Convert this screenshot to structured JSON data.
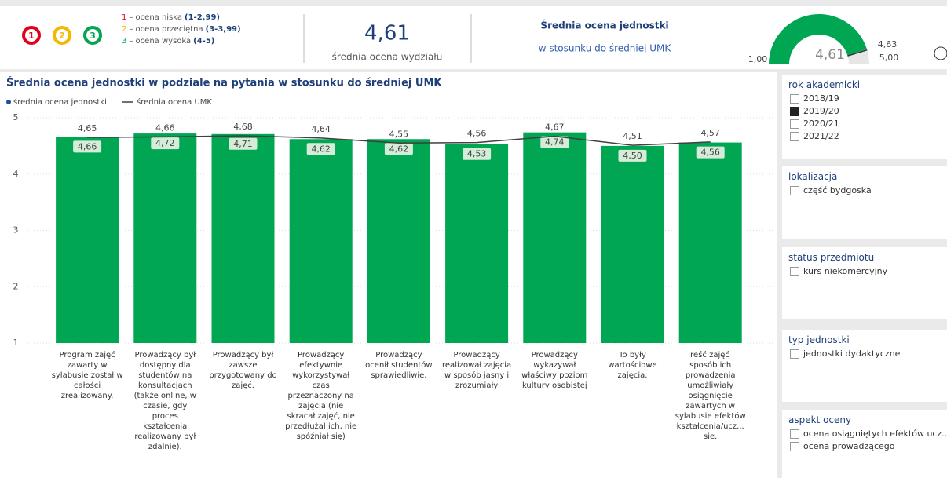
{
  "header": {
    "legend": [
      {
        "num": "1",
        "text": "– ocena niska",
        "range": "(1-2,99)"
      },
      {
        "num": "2",
        "text": "– ocena przeciętna",
        "range": "(3-3,99)"
      },
      {
        "num": "3",
        "text": "– ocena wysoka",
        "range": "(4-5)"
      }
    ],
    "kpi": {
      "value": "4,61",
      "label": "średnia ocena wydziału"
    },
    "compare": {
      "title": "Średnia ocena jednostki",
      "subtitle": "w stosunku do średniej UMK"
    },
    "gauge": {
      "value": 4.61,
      "label": "4,61",
      "min": {
        "value": 1,
        "label": "1,00"
      },
      "max": {
        "value": 5,
        "label": "5,00"
      },
      "target": {
        "value": 4.63,
        "label": "4,63"
      }
    }
  },
  "chart_data": {
    "type": "bar",
    "title": "Średnia ocena jednostki w podziale na pytania w stosunku do średniej UMK",
    "categories": [
      "Program zajęć zawarty w sylabusie został w całości zrealizowany.",
      "Prowadzący był dostępny dla studentów na konsultacjach (także online, w czasie, gdy proces kształcenia realizowany był zdalnie).",
      "Prowadzący był zawsze przygotowany do zajęć.",
      "Prowadzący efektywnie wykorzystywał czas przeznaczony na zajęcia (nie skracał zajęć, nie przedłużał ich, nie spóźniał się)",
      "Prowadzący ocenił studentów sprawiedliwie.",
      "Prowadzący realizował zajęcia w sposób jasny i zrozumiały",
      "Prowadzący wykazywał właściwy poziom kultury osobistej",
      "To były wartościowe zajęcia.",
      "Treść zajęć i sposób ich prowadzenia umożliwiały osiągnięcie zawartych w sylabusie efektów kształcenia/ucz... sie."
    ],
    "series": [
      {
        "name": "średnia ocena jednostki",
        "color": "#00a651",
        "values": [
          4.66,
          4.72,
          4.71,
          4.62,
          4.62,
          4.53,
          4.74,
          4.5,
          4.56
        ],
        "value_labels": [
          "4,66",
          "4,72",
          "4,71",
          "4,62",
          "4,62",
          "4,53",
          "4,74",
          "4,50",
          "4,56"
        ]
      },
      {
        "name": "średnia ocena UMK",
        "type": "line",
        "color": "#404040",
        "values": [
          4.65,
          4.66,
          4.68,
          4.64,
          4.55,
          4.56,
          4.67,
          4.51,
          4.57
        ],
        "value_labels": [
          "4,65",
          "4,66",
          "4,68",
          "4,64",
          "4,55",
          "4,56",
          "4,67",
          "4,51",
          "4,57"
        ]
      }
    ],
    "ylim": [
      1,
      5
    ],
    "yticks": [
      1,
      2,
      3,
      4,
      5
    ],
    "grid": true
  },
  "filters": [
    {
      "title": "rok akademicki",
      "options": [
        "2018/19",
        "2019/20",
        "2020/21",
        "2021/22"
      ],
      "selected": [
        false,
        true,
        false,
        false
      ]
    },
    {
      "title": "lokalizacja",
      "options": [
        "część bydgoska"
      ],
      "selected": [
        false
      ]
    },
    {
      "title": "status przedmiotu",
      "options": [
        "kurs niekomercyjny"
      ],
      "selected": [
        false
      ]
    },
    {
      "title": "typ jednostki",
      "options": [
        "jednostki dydaktyczne"
      ],
      "selected": [
        false
      ]
    },
    {
      "title": "aspekt oceny",
      "options": [
        "ocena osiągniętych efektów ucz...",
        "ocena prowadzącego"
      ],
      "selected": [
        false,
        false
      ]
    }
  ]
}
